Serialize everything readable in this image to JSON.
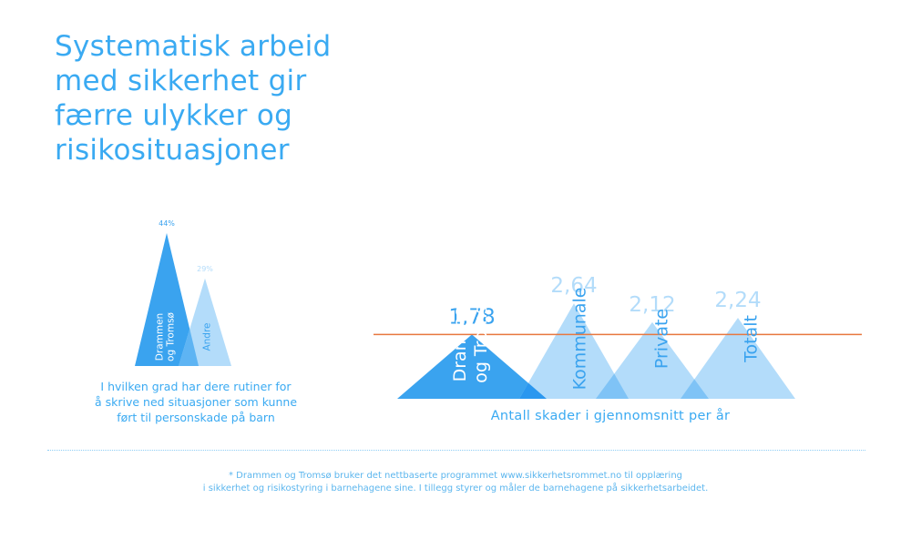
{
  "title_lines": [
    "Systematisk arbeid",
    "med sikkerhet gir",
    "færre ulykker og",
    "risikosituasjoner"
  ],
  "colors": {
    "primary": "#3aa3ef",
    "light": "#b3dcfa",
    "overlap": "#7fc3f6",
    "reference_line": "#e8773f",
    "text": "#3aaaf2"
  },
  "chart_data": [
    {
      "type": "bar",
      "shape": "triangle",
      "categories": [
        "Drammen og Tromsø",
        "Andre"
      ],
      "values": [
        44,
        29
      ],
      "value_labels": [
        "44%",
        "29%"
      ],
      "category_labels": [
        [
          "Drammen",
          "og Tromsø"
        ],
        [
          "Andre"
        ]
      ],
      "caption_lines": [
        "I hvilken grad har dere  rutiner for",
        "å skrive ned situasjoner som kunne",
        "ført til personskade på barn"
      ],
      "ylim": [
        0,
        50
      ]
    },
    {
      "type": "bar",
      "shape": "triangle",
      "categories": [
        "Drammen og Tromsø",
        "Kommunale",
        "Private",
        "Totalt"
      ],
      "values": [
        1.78,
        2.64,
        2.12,
        2.24
      ],
      "value_labels": [
        "1,78",
        "2,64",
        "2,12",
        "2,24"
      ],
      "category_labels": [
        [
          "Drammen",
          "og Tromsø"
        ],
        [
          "Kommunale"
        ],
        [
          "Private"
        ],
        [
          "Totalt"
        ]
      ],
      "reference_line": 1.78,
      "caption": "Antall skader i gjennomsnitt per år",
      "ylim": [
        0,
        3
      ]
    }
  ],
  "footnote_lines": [
    "* Drammen og Tromsø bruker det nettbaserte programmet www.sikkerhetsrommet.no til opplæring",
    "i sikkerhet og risikostyring i barnehagene sine. I tillegg styrer og måler de barnehagene på sikkerhetsarbeidet."
  ]
}
